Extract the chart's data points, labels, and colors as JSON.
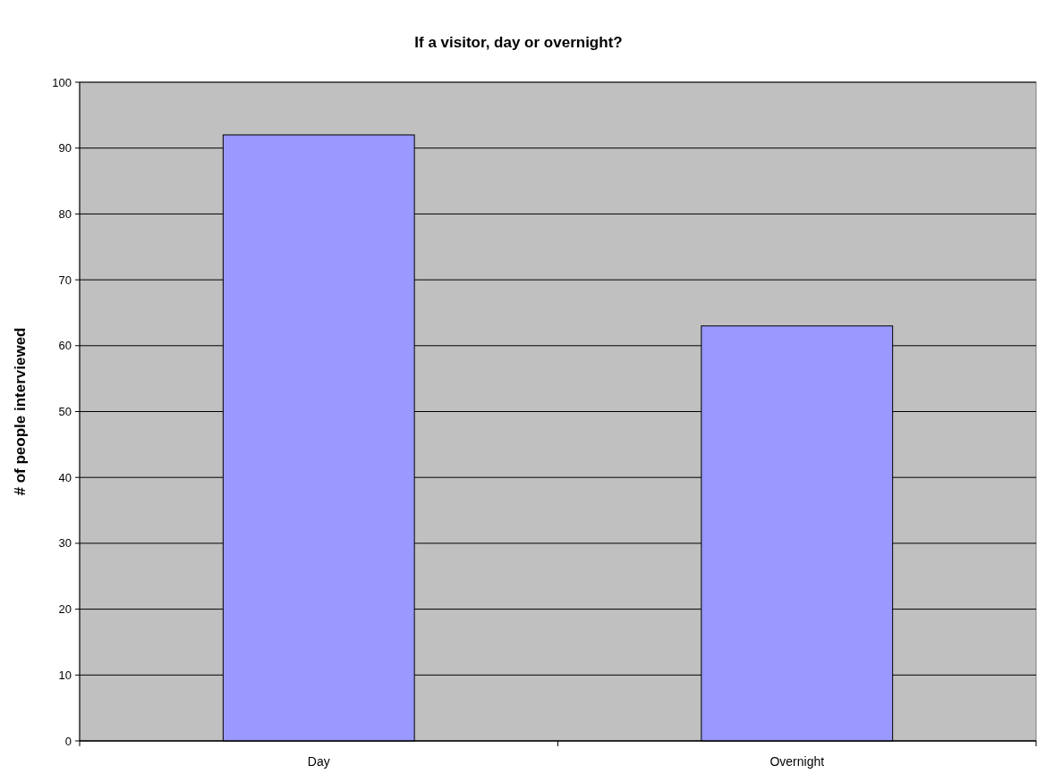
{
  "chart_data": {
    "type": "bar",
    "title": "If a visitor, day or overnight?",
    "ylabel": "# of people interviewed",
    "categories": [
      "Day",
      "Overnight"
    ],
    "values": [
      92,
      63
    ],
    "color": "#9999ff",
    "ylim": [
      0,
      100
    ],
    "yticks": [
      0,
      10,
      20,
      30,
      40,
      50,
      60,
      70,
      80,
      90,
      100
    ],
    "grid": "y"
  }
}
